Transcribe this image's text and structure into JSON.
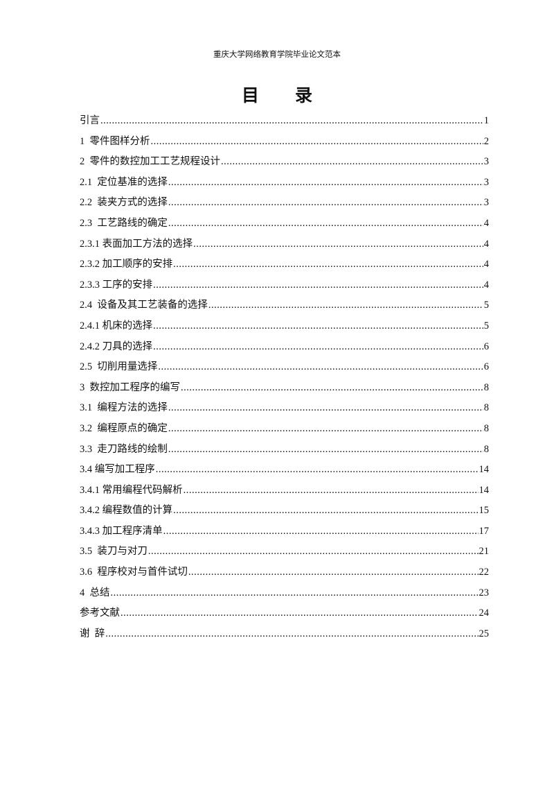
{
  "header": "重庆大学网络教育学院毕业论文范本",
  "title": "目录",
  "toc": [
    {
      "label": "引言",
      "page": "1"
    },
    {
      "label": "1  零件图样分析",
      "page": "2"
    },
    {
      "label": "2  零件的数控加工工艺规程设计",
      "page": "3"
    },
    {
      "label": "2.1  定位基准的选择",
      "page": "3"
    },
    {
      "label": "2.2  装夹方式的选择",
      "page": "3"
    },
    {
      "label": "2.3  工艺路线的确定",
      "page": "4"
    },
    {
      "label": "2.3.1 表面加工方法的选择",
      "page": "4"
    },
    {
      "label": "2.3.2 加工顺序的安排",
      "page": "4"
    },
    {
      "label": "2.3.3 工序的安排",
      "page": "4"
    },
    {
      "label": "2.4  设备及其工艺装备的选择",
      "page": "5"
    },
    {
      "label": "2.4.1 机床的选择",
      "page": "5"
    },
    {
      "label": "2.4.2 刀具的选择",
      "page": "6"
    },
    {
      "label": "2.5  切削用量选择",
      "page": "6"
    },
    {
      "label": "3  数控加工程序的编写",
      "page": "8"
    },
    {
      "label": "3.1  编程方法的选择",
      "page": "8"
    },
    {
      "label": "3.2  编程原点的确定",
      "page": "8"
    },
    {
      "label": "3.3  走刀路线的绘制",
      "page": "8"
    },
    {
      "label": "3.4 编写加工程序",
      "page": "14"
    },
    {
      "label": "3.4.1 常用编程代码解析",
      "page": "14"
    },
    {
      "label": "3.4.2 编程数值的计算",
      "page": "15"
    },
    {
      "label": "3.4.3 加工程序清单",
      "page": "17"
    },
    {
      "label": "3.5  装刀与对刀",
      "page": "21"
    },
    {
      "label": "3.6  程序校对与首件试切",
      "page": "22"
    },
    {
      "label": "4  总结",
      "page": "23"
    },
    {
      "label": "参考文献",
      "page": "24"
    },
    {
      "label": "谢  辞",
      "page": "25"
    }
  ]
}
